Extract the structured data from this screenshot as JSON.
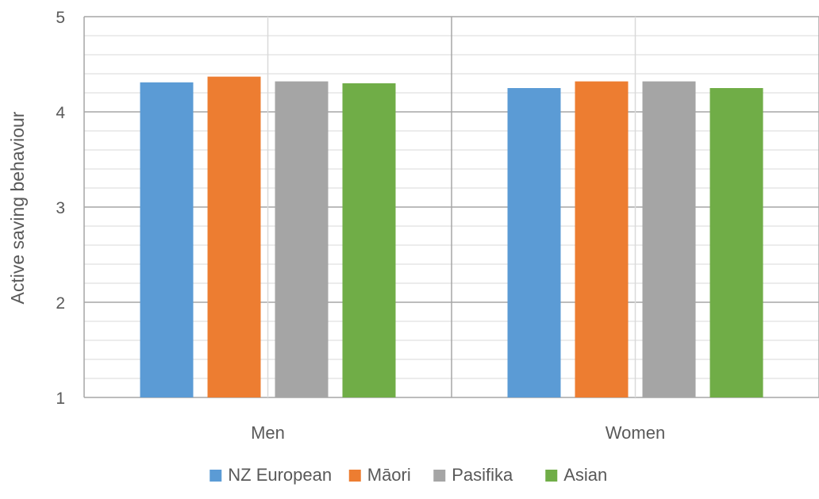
{
  "chart_data": {
    "type": "bar",
    "title": "",
    "xlabel": "",
    "ylabel": "Active saving behaviour",
    "ylim": [
      1,
      5
    ],
    "yticks": [
      1,
      2,
      3,
      4,
      5
    ],
    "minor_step": 0.2,
    "grid": true,
    "legend": "bottom",
    "categories": [
      "Men",
      "Women"
    ],
    "series": [
      {
        "name": "NZ European",
        "color": "#5B9BD5",
        "values": [
          4.31,
          4.25
        ]
      },
      {
        "name": "Māori",
        "color": "#ED7D31",
        "values": [
          4.37,
          4.32
        ]
      },
      {
        "name": "Pasifika",
        "color": "#A5A5A5",
        "values": [
          4.32,
          4.32
        ]
      },
      {
        "name": "Asian",
        "color": "#70AD47",
        "values": [
          4.3,
          4.25
        ]
      }
    ]
  }
}
